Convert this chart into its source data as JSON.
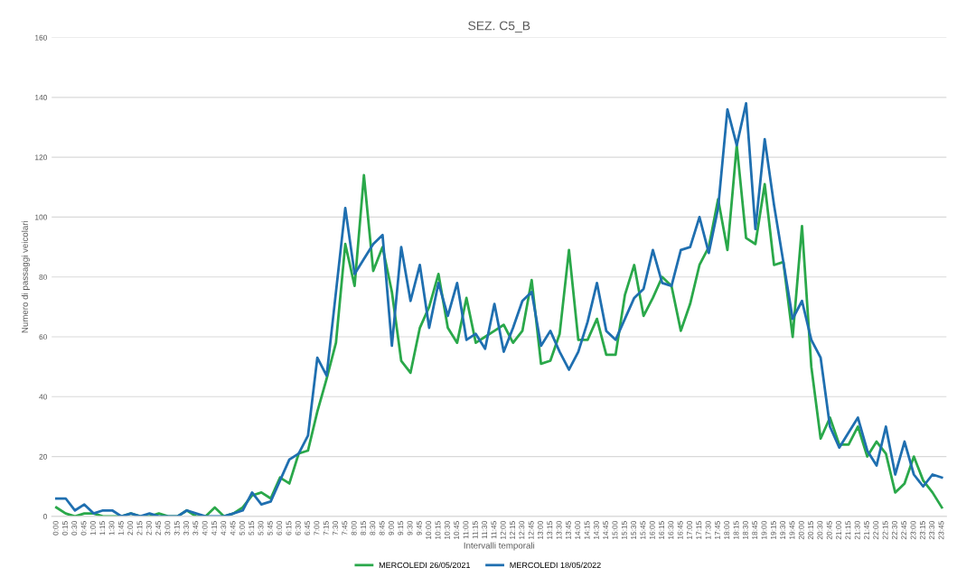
{
  "chart_data": {
    "type": "line",
    "title": "SEZ. C5_B",
    "xlabel": "Intervalli temporali",
    "ylabel": "Numero di passaggi veicolari",
    "categories": [
      "0:00",
      "0:15",
      "0:30",
      "0:45",
      "1:00",
      "1:15",
      "1:30",
      "1:45",
      "2:00",
      "2:15",
      "2:30",
      "2:45",
      "3:00",
      "3:15",
      "3:30",
      "3:45",
      "4:00",
      "4:15",
      "4:30",
      "4:45",
      "5:00",
      "5:15",
      "5:30",
      "5:45",
      "6:00",
      "6:15",
      "6:30",
      "6:45",
      "7:00",
      "7:15",
      "7:30",
      "7:45",
      "8:00",
      "8:15",
      "8:30",
      "8:45",
      "9:00",
      "9:15",
      "9:30",
      "9:45",
      "10:00",
      "10:15",
      "10:30",
      "10:45",
      "11:00",
      "11:15",
      "11:30",
      "11:45",
      "12:00",
      "12:15",
      "12:30",
      "12:45",
      "13:00",
      "13:15",
      "13:30",
      "13:45",
      "14:00",
      "14:15",
      "14:30",
      "14:45",
      "15:00",
      "15:15",
      "15:30",
      "15:45",
      "16:00",
      "16:15",
      "16:30",
      "16:45",
      "17:00",
      "17:15",
      "17:30",
      "17:45",
      "18:00",
      "18:15",
      "18:30",
      "18:45",
      "19:00",
      "19:15",
      "19:30",
      "19:45",
      "20:00",
      "20:15",
      "20:30",
      "20:45",
      "21:00",
      "21:15",
      "21:30",
      "21:45",
      "22:00",
      "22:15",
      "22:30",
      "22:45",
      "23:00",
      "23:15",
      "23:30",
      "23:45"
    ],
    "series": [
      {
        "name": "MERCOLEDI 26/05/2021",
        "color": "#2aa84a",
        "values": [
          3,
          1,
          0,
          1,
          1,
          0,
          0,
          0,
          1,
          0,
          0,
          1,
          0,
          0,
          2,
          0,
          0,
          3,
          0,
          1,
          3,
          7,
          8,
          6,
          13,
          11,
          21,
          22,
          35,
          46,
          58,
          91,
          77,
          114,
          82,
          90,
          75,
          52,
          48,
          63,
          70,
          81,
          63,
          58,
          73,
          58,
          60,
          62,
          64,
          58,
          62,
          79,
          51,
          52,
          61,
          89,
          59,
          59,
          66,
          54,
          54,
          74,
          84,
          67,
          73,
          80,
          77,
          62,
          71,
          84,
          90,
          106,
          89,
          124,
          93,
          91,
          111,
          84,
          85,
          60,
          97,
          50,
          26,
          33,
          24,
          24,
          30,
          20,
          25,
          21,
          8,
          11,
          20,
          12,
          8,
          3
        ]
      },
      {
        "name": "MERCOLEDI 18/05/2022",
        "color": "#1f6fb0",
        "values": [
          6,
          6,
          2,
          4,
          1,
          2,
          2,
          0,
          1,
          0,
          1,
          0,
          0,
          0,
          2,
          1,
          0,
          0,
          0,
          1,
          2,
          8,
          4,
          5,
          12,
          19,
          21,
          27,
          53,
          47,
          75,
          103,
          81,
          86,
          91,
          94,
          57,
          90,
          72,
          84,
          63,
          78,
          67,
          78,
          59,
          61,
          56,
          71,
          55,
          63,
          72,
          75,
          57,
          62,
          55,
          49,
          55,
          65,
          78,
          62,
          59,
          66,
          73,
          76,
          89,
          78,
          77,
          89,
          90,
          100,
          88,
          103,
          136,
          124,
          138,
          96,
          126,
          104,
          85,
          66,
          72,
          59,
          53,
          30,
          23,
          28,
          33,
          22,
          17,
          30,
          14,
          25,
          14,
          10,
          14,
          13
        ]
      }
    ],
    "ylim": [
      0,
      160
    ],
    "yticks": [
      0,
      20,
      40,
      60,
      80,
      100,
      120,
      140,
      160
    ],
    "grid": "y",
    "legend": "bottom",
    "marker": "none",
    "line_style": "solid"
  }
}
